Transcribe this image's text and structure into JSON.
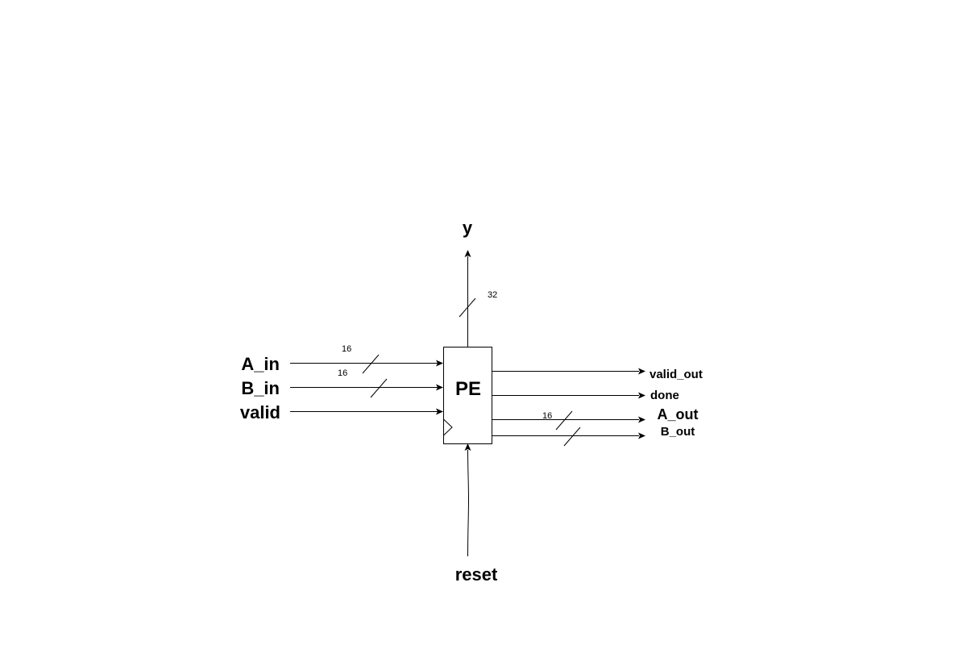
{
  "block": {
    "label": "PE"
  },
  "inputs": {
    "a_in": {
      "label": "A_in",
      "width": "16"
    },
    "b_in": {
      "label": "B_in",
      "width": "16"
    },
    "valid": {
      "label": "valid"
    }
  },
  "top_output": {
    "label": "y",
    "width": "32"
  },
  "bottom_input": {
    "label": "reset"
  },
  "outputs": {
    "valid_out": {
      "label": "valid_out"
    },
    "done": {
      "label": "done"
    },
    "a_out": {
      "label": "A_out",
      "width": "16"
    },
    "b_out": {
      "label": "B_out"
    }
  }
}
